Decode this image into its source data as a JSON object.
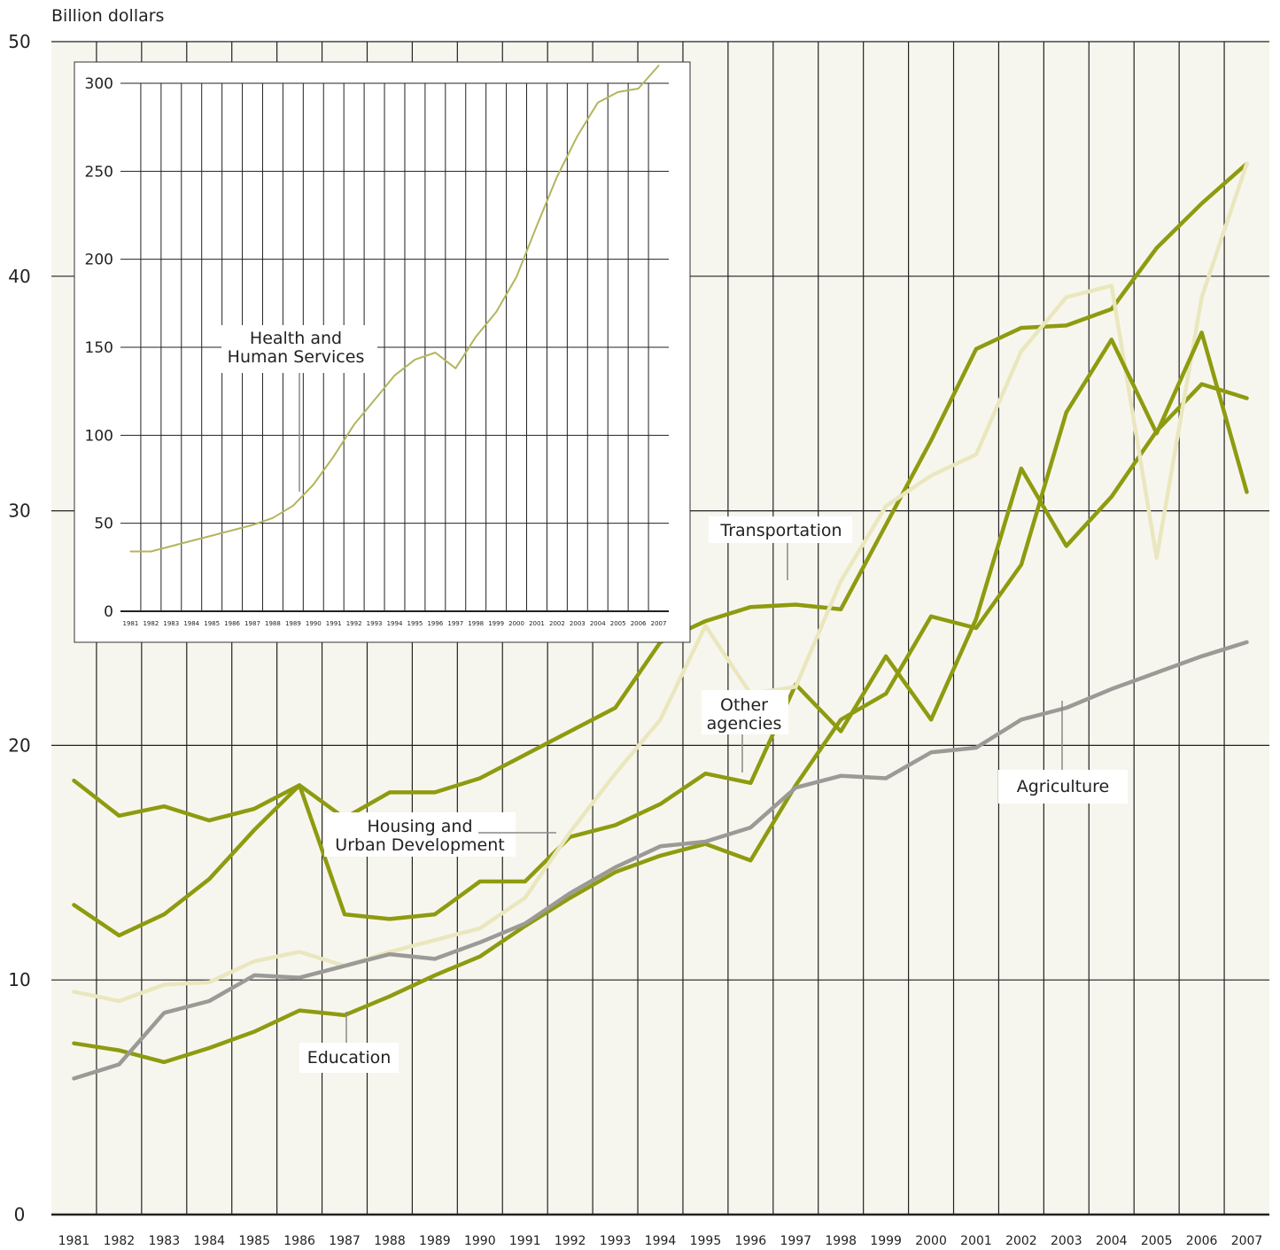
{
  "chart_data": [
    {
      "type": "line",
      "ylabel": "Billion dollars",
      "ylim": [
        0,
        50
      ],
      "yticks": [
        0,
        10,
        20,
        30,
        40,
        50
      ],
      "grid": true,
      "x": [
        "1981",
        "1982",
        "1983",
        "1984",
        "1985",
        "1986",
        "1987",
        "1988",
        "1989",
        "1990",
        "1991",
        "1992",
        "1993",
        "1994",
        "1995",
        "1996",
        "1997",
        "1998",
        "1999",
        "2000",
        "2001",
        "2002",
        "2003",
        "2004",
        "2005",
        "2006",
        "2007"
      ],
      "series": [
        {
          "name": "Transportation",
          "color": "#8e9b10",
          "values": [
            18.5,
            17.0,
            17.4,
            16.8,
            17.3,
            18.3,
            16.9,
            18.0,
            18.0,
            18.6,
            19.6,
            20.6,
            21.6,
            24.4,
            25.3,
            25.9,
            26.0,
            25.8,
            29.4,
            33.0,
            36.9,
            37.8,
            37.9,
            38.6,
            41.2,
            43.1,
            44.8
          ]
        },
        {
          "name": "Housing and Urban Development",
          "color": "#8e9b10",
          "values": [
            13.2,
            11.9,
            12.8,
            14.3,
            16.4,
            18.3,
            12.8,
            12.6,
            12.8,
            14.2,
            14.2,
            16.1,
            16.6,
            17.5,
            18.8,
            18.4,
            22.6,
            20.6,
            23.8,
            21.1,
            25.4,
            31.8,
            28.5,
            30.6,
            33.4,
            35.4,
            34.8
          ]
        },
        {
          "name": "Other agencies",
          "color": "#eae7bf",
          "values": [
            9.5,
            9.1,
            9.8,
            9.9,
            10.8,
            11.2,
            10.6,
            11.2,
            11.7,
            12.2,
            13.5,
            16.3,
            18.8,
            21.1,
            25.1,
            22.2,
            22.5,
            27.0,
            30.2,
            31.5,
            32.4,
            36.8,
            39.1,
            39.6,
            28.0,
            39.1,
            44.8
          ]
        },
        {
          "name": "Education",
          "color": "#8e9b10",
          "values": [
            7.3,
            7.0,
            6.5,
            7.1,
            7.8,
            8.7,
            8.5,
            9.3,
            10.2,
            11.0,
            12.3,
            13.5,
            14.6,
            15.3,
            15.8,
            15.1,
            18.3,
            21.1,
            22.2,
            25.5,
            25.0,
            27.7,
            34.2,
            37.3,
            33.3,
            37.6,
            30.8
          ]
        },
        {
          "name": "Agriculture",
          "color": "#9b9a97",
          "values": [
            5.8,
            6.4,
            8.6,
            9.1,
            10.2,
            10.1,
            10.6,
            11.1,
            10.9,
            11.6,
            12.4,
            13.7,
            14.8,
            15.7,
            15.9,
            16.5,
            18.2,
            18.7,
            18.6,
            19.7,
            19.9,
            21.1,
            21.6,
            22.4,
            23.1,
            23.8,
            24.4
          ]
        }
      ],
      "annotations": {
        "transportation": "Transportation",
        "housing_line1": "Housing and",
        "housing_line2": "Urban Development",
        "other_line1": "Other",
        "other_line2": "agencies",
        "agriculture": "Agriculture",
        "education": "Education"
      }
    },
    {
      "type": "line",
      "inset": true,
      "ylim": [
        0,
        300
      ],
      "yticks": [
        0,
        50,
        100,
        150,
        200,
        250,
        300
      ],
      "grid": true,
      "x": [
        "1981",
        "1982",
        "1983",
        "1984",
        "1985",
        "1986",
        "1987",
        "1988",
        "1989",
        "1990",
        "1991",
        "1992",
        "1993",
        "1994",
        "1995",
        "1996",
        "1997",
        "1998",
        "1999",
        "2000",
        "2001",
        "2002",
        "2003",
        "2004",
        "2005",
        "2006",
        "2007"
      ],
      "series": [
        {
          "name": "Health and Human Services",
          "color": "#b3b55c",
          "values": [
            34,
            34,
            37,
            40,
            43,
            46,
            49,
            53,
            60,
            72,
            88,
            106,
            120,
            134,
            143,
            147,
            138,
            156,
            170,
            190,
            219,
            247,
            270,
            289,
            295,
            297,
            310
          ]
        }
      ],
      "annotations": {
        "hhs_line1": "Health and",
        "hhs_line2": "Human Services"
      }
    }
  ]
}
